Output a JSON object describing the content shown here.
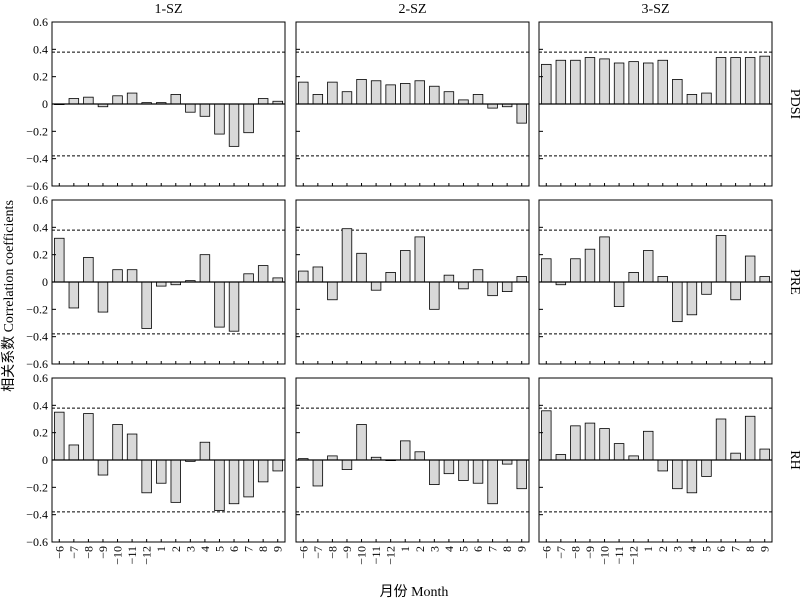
{
  "y_axis_label": "相关系数 Correlation coefficients",
  "x_axis_label": "月份 Month",
  "colors": {
    "bar_fill": "#d9d9d9",
    "bar_stroke": "#000000",
    "axis": "#000000",
    "reference_line": "#000000"
  },
  "chart_data": {
    "type": "bar",
    "layout": "3x3 grid of panels; columns are zones, rows are indices",
    "columns": [
      "1-SZ",
      "2-SZ",
      "3-SZ"
    ],
    "rows": [
      "PDSI",
      "PRE",
      "RH"
    ],
    "categories": [
      "−6",
      "−7",
      "−8",
      "−9",
      "−10",
      "−11",
      "−12",
      "1",
      "2",
      "3",
      "4",
      "5",
      "6",
      "7",
      "8",
      "9"
    ],
    "ylim": [
      -0.6,
      0.6
    ],
    "yticks": [
      0.6,
      0.4,
      0.2,
      0,
      -0.2,
      -0.4,
      -0.6
    ],
    "ytick_labels": [
      "0.6",
      "0.4",
      "0.2",
      "0",
      "−0.2",
      "−0.4",
      "−0.6"
    ],
    "significance_lines": [
      0.38,
      -0.38
    ],
    "grid": false,
    "panels": [
      {
        "row": "PDSI",
        "column": "1-SZ",
        "values": [
          0.0,
          0.04,
          0.05,
          -0.02,
          0.06,
          0.08,
          0.01,
          0.01,
          0.07,
          -0.06,
          -0.09,
          -0.22,
          -0.31,
          -0.21,
          0.04,
          0.02
        ]
      },
      {
        "row": "PDSI",
        "column": "2-SZ",
        "values": [
          0.16,
          0.07,
          0.16,
          0.09,
          0.18,
          0.17,
          0.14,
          0.15,
          0.17,
          0.13,
          0.09,
          0.03,
          0.07,
          -0.03,
          -0.02,
          -0.14
        ]
      },
      {
        "row": "PDSI",
        "column": "3-SZ",
        "values": [
          0.29,
          0.32,
          0.32,
          0.34,
          0.33,
          0.3,
          0.31,
          0.3,
          0.32,
          0.18,
          0.07,
          0.08,
          0.34,
          0.34,
          0.34,
          0.35
        ]
      },
      {
        "row": "PRE",
        "column": "1-SZ",
        "values": [
          0.32,
          -0.19,
          0.18,
          -0.22,
          0.09,
          0.09,
          -0.34,
          -0.03,
          -0.02,
          0.01,
          0.2,
          -0.33,
          -0.36,
          0.06,
          0.12,
          0.03
        ]
      },
      {
        "row": "PRE",
        "column": "2-SZ",
        "values": [
          0.08,
          0.11,
          -0.13,
          0.39,
          0.21,
          -0.06,
          0.07,
          0.23,
          0.33,
          -0.2,
          0.05,
          -0.05,
          0.09,
          -0.1,
          -0.07,
          0.04
        ]
      },
      {
        "row": "PRE",
        "column": "3-SZ",
        "values": [
          0.17,
          -0.02,
          0.17,
          0.24,
          0.33,
          -0.18,
          0.07,
          0.23,
          0.04,
          -0.29,
          -0.24,
          -0.09,
          0.34,
          -0.13,
          0.19,
          0.04
        ]
      },
      {
        "row": "RH",
        "column": "1-SZ",
        "values": [
          0.35,
          0.11,
          0.34,
          -0.11,
          0.26,
          0.19,
          -0.24,
          -0.17,
          -0.31,
          -0.01,
          0.13,
          -0.37,
          -0.32,
          -0.27,
          -0.16,
          -0.08
        ]
      },
      {
        "row": "RH",
        "column": "2-SZ",
        "values": [
          0.01,
          -0.19,
          0.03,
          -0.07,
          0.26,
          0.02,
          0.0,
          0.14,
          0.06,
          -0.18,
          -0.1,
          -0.15,
          -0.17,
          -0.32,
          -0.03,
          -0.21
        ]
      },
      {
        "row": "RH",
        "column": "3-SZ",
        "values": [
          0.36,
          0.04,
          0.25,
          0.27,
          0.23,
          0.12,
          0.03,
          0.21,
          -0.08,
          -0.21,
          -0.24,
          -0.12,
          0.3,
          0.05,
          0.32,
          0.08
        ]
      }
    ]
  }
}
